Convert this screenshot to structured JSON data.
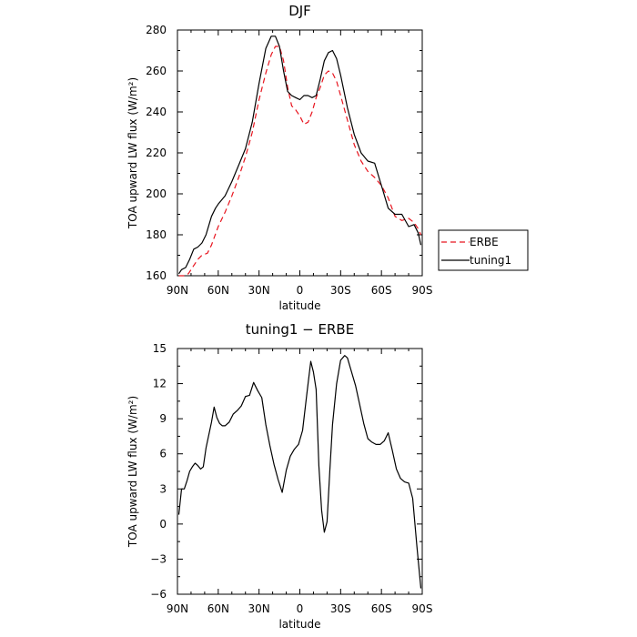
{
  "chart_data": [
    {
      "type": "line",
      "title": "DJF",
      "xlabel": "latitude",
      "ylabel": "TOA upward LW flux (W/m²)",
      "xlim": [
        -90,
        90
      ],
      "ylim": [
        160,
        280
      ],
      "x_tick_values": [
        -90,
        -60,
        -30,
        0,
        30,
        60,
        90
      ],
      "x_tick_labels": [
        "90N",
        "60N",
        "30N",
        "0",
        "30S",
        "60S",
        "90S"
      ],
      "y_tick_values": [
        160,
        180,
        200,
        220,
        240,
        260,
        280
      ],
      "y_tick_labels": [
        "160",
        "180",
        "200",
        "220",
        "240",
        "260",
        "280"
      ],
      "grid": false,
      "legend_position": "right",
      "series": [
        {
          "name": "ERBE",
          "color": "#e8141e",
          "dash": "dashed",
          "x": [
            -89,
            -85,
            -82,
            -78,
            -75,
            -72,
            -68,
            -65,
            -60,
            -55,
            -50,
            -45,
            -40,
            -35,
            -30,
            -25,
            -21,
            -18,
            -15,
            -12,
            -9,
            -6,
            -3,
            0,
            3,
            6,
            9,
            12,
            15,
            18,
            21,
            24,
            27,
            30,
            35,
            40,
            45,
            50,
            55,
            60,
            65,
            70,
            75,
            80,
            84,
            87,
            89
          ],
          "y": [
            160,
            160,
            161,
            165,
            168,
            170,
            171,
            175,
            184,
            191,
            199,
            208,
            218,
            230,
            246,
            259,
            268,
            272,
            272,
            265,
            252,
            243,
            241,
            238,
            234,
            235,
            240,
            247,
            252,
            258,
            260,
            259,
            255,
            248,
            236,
            224,
            216,
            211,
            208,
            204,
            198,
            189,
            187,
            188,
            186,
            183,
            180
          ]
        },
        {
          "name": "tuning1",
          "color": "#000000",
          "dash": "solid",
          "x": [
            -89,
            -87,
            -84,
            -81,
            -78,
            -75,
            -72,
            -69,
            -65,
            -62,
            -60,
            -55,
            -50,
            -45,
            -40,
            -35,
            -30,
            -25,
            -21,
            -18,
            -15,
            -12,
            -9,
            -6,
            -3,
            0,
            3,
            6,
            9,
            12,
            15,
            18,
            21,
            24,
            27,
            30,
            35,
            40,
            45,
            50,
            55,
            60,
            65,
            70,
            75,
            80,
            84,
            87,
            89
          ],
          "y": [
            161,
            163,
            164,
            168,
            173,
            174,
            176,
            180,
            189,
            193,
            195,
            199,
            206,
            214,
            222,
            235,
            254,
            271,
            277,
            277,
            272,
            260,
            250,
            248,
            247,
            246,
            248,
            248,
            247,
            248,
            256,
            265,
            269,
            270,
            266,
            258,
            242,
            229,
            220,
            216,
            215,
            204,
            193,
            190,
            190,
            184,
            185,
            181,
            175
          ]
        }
      ]
    },
    {
      "type": "line",
      "title": "tuning1 − ERBE",
      "xlabel": "latitude",
      "ylabel": "TOA upward LW flux (W/m²)",
      "xlim": [
        -90,
        90
      ],
      "ylim": [
        -6,
        15
      ],
      "x_tick_values": [
        -90,
        -60,
        -30,
        0,
        30,
        60,
        90
      ],
      "x_tick_labels": [
        "90N",
        "60N",
        "30N",
        "0",
        "30S",
        "60S",
        "90S"
      ],
      "y_tick_values": [
        -6,
        -3,
        0,
        3,
        6,
        9,
        12,
        15
      ],
      "y_tick_labels": [
        "−6",
        "−3",
        "0",
        "3",
        "6",
        "9",
        "12",
        "15"
      ],
      "grid": false,
      "series": [
        {
          "color": "#000000",
          "dash": "solid",
          "x": [
            -89,
            -87,
            -85,
            -83,
            -81,
            -79,
            -77,
            -75,
            -73,
            -71,
            -69,
            -67,
            -65,
            -63,
            -61,
            -59,
            -57,
            -55,
            -52,
            -49,
            -46,
            -43,
            -40,
            -37,
            -34,
            -31,
            -28,
            -25,
            -22,
            -19,
            -16,
            -13,
            -10,
            -7,
            -4,
            -1,
            2,
            5,
            8,
            10,
            12,
            14,
            16,
            18,
            20,
            22,
            24,
            27,
            30,
            33,
            35,
            38,
            41,
            44,
            47,
            50,
            53,
            56,
            59,
            62,
            65,
            68,
            71,
            74,
            77,
            80,
            83,
            86,
            89
          ],
          "y": [
            0.8,
            3,
            3,
            3.7,
            4.5,
            4.9,
            5.2,
            5,
            4.7,
            4.9,
            6.5,
            7.6,
            8.7,
            10,
            9.1,
            8.6,
            8.4,
            8.4,
            8.7,
            9.4,
            9.7,
            10.1,
            10.9,
            11,
            12.1,
            11.4,
            10.8,
            8.5,
            6.7,
            5.1,
            3.8,
            2.7,
            4.6,
            5.8,
            6.4,
            6.8,
            8,
            11,
            13.9,
            13,
            11.5,
            5,
            1.2,
            -0.7,
            0.2,
            4.5,
            8.5,
            12,
            14,
            14.4,
            14.2,
            13,
            11.8,
            10.2,
            8.6,
            7.3,
            7,
            6.8,
            6.8,
            7.1,
            7.8,
            6.3,
            4.7,
            3.9,
            3.6,
            3.5,
            2.2,
            -1.8,
            -5.5
          ]
        }
      ]
    }
  ]
}
